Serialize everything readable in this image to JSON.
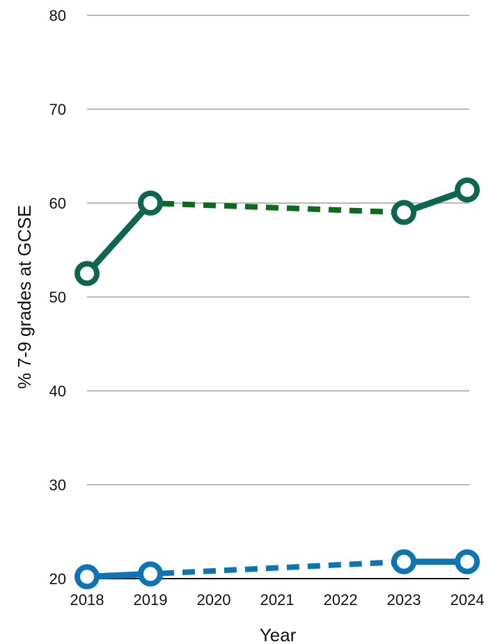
{
  "chart_data": {
    "type": "line",
    "xlabel": "Year",
    "ylabel": "% 7-9 grades at GCSE",
    "categories": [
      "2018",
      "2019",
      "2020",
      "2021",
      "2022",
      "2023",
      "2024"
    ],
    "ylim": [
      20,
      80
    ],
    "yticks": [
      20,
      30,
      40,
      50,
      60,
      70,
      80
    ],
    "grid": true,
    "legend": "none",
    "series": [
      {
        "color": "#0e6650",
        "gap_color": "#0b6a1d",
        "values": [
          52.5,
          60.0,
          null,
          null,
          null,
          59.0,
          61.4
        ],
        "gap_line": {
          "from": "2019",
          "to": "2023"
        }
      },
      {
        "color": "#0f74b4",
        "gap_color": "#0f74b4",
        "values": [
          20.2,
          20.5,
          null,
          null,
          null,
          21.8,
          21.8
        ],
        "gap_line": {
          "from": "2019",
          "to": "2023"
        }
      }
    ]
  }
}
